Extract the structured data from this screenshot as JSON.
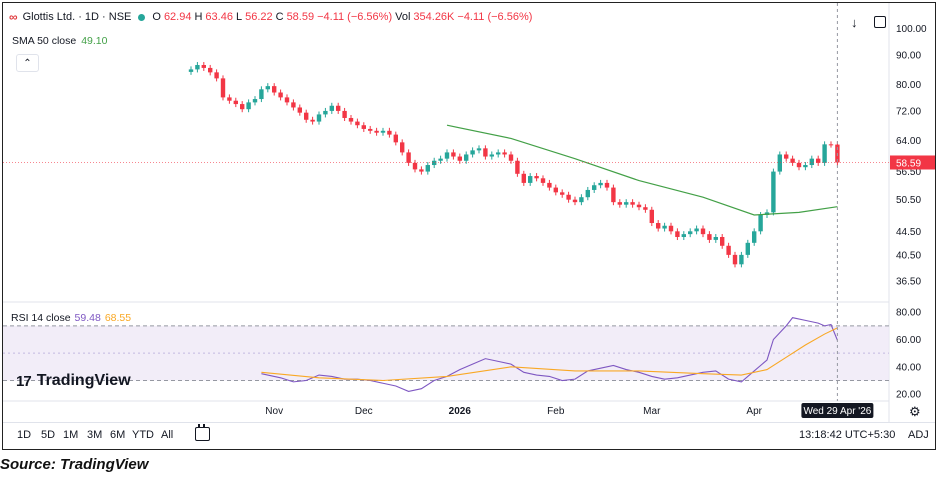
{
  "header": {
    "symbol": "Glottis Ltd. · 1D · NSE",
    "open_label": "O",
    "open": "62.94",
    "high_label": "H",
    "high": "63.46",
    "low_label": "L",
    "low": "56.22",
    "close_label": "C",
    "close": "58.59",
    "change": "−4.11 (−6.56%)",
    "vol_label": "Vol",
    "volume": "354.26K",
    "vol_change": "−4.11 (−6.56%)"
  },
  "sma_legend": {
    "label": "SMA 50 close",
    "value": "49.10"
  },
  "rsi_legend": {
    "label": "RSI 14 close",
    "value1": "59.48",
    "value2": "68.55"
  },
  "brand": "TradingView",
  "timeframes": [
    "1D",
    "5D",
    "1M",
    "3M",
    "6M",
    "YTD",
    "All"
  ],
  "clock": "13:18:42 UTC+5:30",
  "adj": "ADJ",
  "crosshair_date": "Wed 29 Apr '26",
  "last_price_label": "58.59",
  "caption": "Source: TradingView",
  "colors": {
    "up": "#26a69a",
    "down": "#f23645",
    "sma": "#43a047",
    "rsi": "#7e57c2",
    "rsi_ma": "#f9a825"
  },
  "chart_data": [
    {
      "type": "candlestick",
      "title": "Glottis Ltd. · 1D · NSE",
      "x_ticks": [
        "Nov",
        "Dec",
        "2026",
        "Feb",
        "Mar",
        "Apr"
      ],
      "y_ticks": [
        36.5,
        40.5,
        44.5,
        50.5,
        56.5,
        64.0,
        72.0,
        80.0,
        90.0,
        100.0
      ],
      "y_scale": "log",
      "ylim": [
        34.5,
        104.8
      ],
      "last_price": 58.59,
      "grid": false,
      "series": [
        {
          "name": "Price",
          "points": [
            [
              0,
              85.0
            ],
            [
              1,
              86.5
            ],
            [
              2,
              85.5
            ],
            [
              3,
              84.0
            ],
            [
              4,
              82.0
            ],
            [
              5,
              76.0
            ],
            [
              6,
              75.0
            ],
            [
              7,
              74.0
            ],
            [
              8,
              72.5
            ],
            [
              9,
              74.5
            ],
            [
              10,
              75.5
            ],
            [
              11,
              78.5
            ],
            [
              12,
              79.5
            ],
            [
              13,
              77.5
            ],
            [
              14,
              76.0
            ],
            [
              15,
              74.5
            ],
            [
              16,
              73.0
            ],
            [
              17,
              71.5
            ],
            [
              18,
              69.5
            ],
            [
              19,
              69.0
            ],
            [
              20,
              71.0
            ],
            [
              21,
              72.0
            ],
            [
              22,
              73.5
            ],
            [
              23,
              72.0
            ],
            [
              24,
              70.0
            ],
            [
              25,
              69.0
            ],
            [
              26,
              68.0
            ],
            [
              27,
              67.0
            ],
            [
              28,
              66.5
            ],
            [
              29,
              66.0
            ],
            [
              30,
              66.5
            ],
            [
              31,
              65.5
            ],
            [
              32,
              63.5
            ],
            [
              33,
              61.0
            ],
            [
              34,
              58.5
            ],
            [
              35,
              57.0
            ],
            [
              36,
              56.5
            ],
            [
              37,
              58.0
            ],
            [
              38,
              59.0
            ],
            [
              39,
              59.5
            ],
            [
              40,
              61.0
            ],
            [
              41,
              60.0
            ],
            [
              42,
              59.0
            ],
            [
              43,
              60.5
            ],
            [
              44,
              61.5
            ],
            [
              45,
              62.0
            ],
            [
              46,
              60.0
            ],
            [
              47,
              60.5
            ],
            [
              48,
              61.0
            ],
            [
              49,
              60.5
            ],
            [
              50,
              59.0
            ],
            [
              51,
              56.0
            ],
            [
              52,
              54.0
            ],
            [
              53,
              55.5
            ],
            [
              54,
              55.0
            ],
            [
              55,
              54.0
            ],
            [
              56,
              53.0
            ],
            [
              57,
              52.0
            ],
            [
              58,
              51.5
            ],
            [
              59,
              50.5
            ],
            [
              60,
              50.0
            ],
            [
              61,
              51.0
            ],
            [
              62,
              52.5
            ],
            [
              63,
              53.5
            ],
            [
              64,
              54.0
            ],
            [
              65,
              53.0
            ],
            [
              66,
              50.0
            ],
            [
              67,
              49.5
            ],
            [
              68,
              50.0
            ],
            [
              69,
              49.5
            ],
            [
              70,
              49.0
            ],
            [
              71,
              48.5
            ],
            [
              72,
              46.0
            ],
            [
              73,
              45.0
            ],
            [
              74,
              45.5
            ],
            [
              75,
              44.5
            ],
            [
              76,
              43.5
            ],
            [
              77,
              44.0
            ],
            [
              78,
              44.5
            ],
            [
              79,
              45.0
            ],
            [
              80,
              44.0
            ],
            [
              81,
              43.0
            ],
            [
              82,
              43.5
            ],
            [
              83,
              42.0
            ],
            [
              84,
              40.5
            ],
            [
              85,
              39.0
            ],
            [
              86,
              40.5
            ],
            [
              87,
              42.5
            ],
            [
              88,
              44.5
            ],
            [
              89,
              47.5
            ],
            [
              90,
              48.0
            ],
            [
              91,
              56.5
            ],
            [
              92,
              60.5
            ],
            [
              93,
              59.5
            ],
            [
              94,
              58.5
            ],
            [
              95,
              57.5
            ],
            [
              96,
              58.0
            ],
            [
              97,
              59.5
            ],
            [
              98,
              58.5
            ],
            [
              99,
              63.0
            ],
            [
              100,
              62.94
            ],
            [
              101,
              58.59
            ]
          ]
        },
        {
          "name": "SMA 50 close",
          "points": [
            [
              40,
              68.0
            ],
            [
              50,
              64.5
            ],
            [
              60,
              59.5
            ],
            [
              70,
              54.5
            ],
            [
              80,
              51.0
            ],
            [
              88,
              47.5
            ],
            [
              95,
              48.0
            ],
            [
              101,
              49.1
            ]
          ]
        }
      ]
    },
    {
      "type": "line",
      "title": "RSI 14 close",
      "x_ticks": [
        "Nov",
        "Dec",
        "2026",
        "Feb",
        "Mar",
        "Apr"
      ],
      "y_ticks": [
        20.0,
        40.0,
        60.0,
        80.0
      ],
      "ylim": [
        15,
        86
      ],
      "bands": [
        30,
        70
      ],
      "series": [
        {
          "name": "RSI 14 close",
          "points": [
            [
              11,
              35
            ],
            [
              14,
              32
            ],
            [
              16,
              29
            ],
            [
              18,
              30
            ],
            [
              20,
              34
            ],
            [
              22,
              33
            ],
            [
              24,
              31
            ],
            [
              26,
              31
            ],
            [
              28,
              30
            ],
            [
              30,
              28
            ],
            [
              32,
              26
            ],
            [
              34,
              22
            ],
            [
              36,
              24
            ],
            [
              38,
              30
            ],
            [
              40,
              33
            ],
            [
              42,
              38
            ],
            [
              44,
              42
            ],
            [
              46,
              46
            ],
            [
              48,
              44
            ],
            [
              50,
              42
            ],
            [
              52,
              36
            ],
            [
              54,
              34
            ],
            [
              56,
              33
            ],
            [
              58,
              30
            ],
            [
              60,
              31
            ],
            [
              62,
              37
            ],
            [
              64,
              39
            ],
            [
              66,
              41
            ],
            [
              68,
              38
            ],
            [
              70,
              36
            ],
            [
              72,
              33
            ],
            [
              74,
              31
            ],
            [
              76,
              32
            ],
            [
              78,
              34
            ],
            [
              80,
              36
            ],
            [
              82,
              37
            ],
            [
              84,
              31
            ],
            [
              86,
              29
            ],
            [
              88,
              37
            ],
            [
              90,
              45
            ],
            [
              91,
              60
            ],
            [
              93,
              70
            ],
            [
              94,
              76
            ],
            [
              96,
              74
            ],
            [
              98,
              72
            ],
            [
              99,
              70
            ],
            [
              100,
              71
            ],
            [
              101,
              59.48
            ]
          ]
        },
        {
          "name": "RSI MA",
          "points": [
            [
              11,
              36
            ],
            [
              20,
              32
            ],
            [
              30,
              30
            ],
            [
              40,
              33
            ],
            [
              50,
              40
            ],
            [
              60,
              37
            ],
            [
              70,
              37
            ],
            [
              80,
              35
            ],
            [
              86,
              34
            ],
            [
              90,
              38
            ],
            [
              93,
              47
            ],
            [
              96,
              56
            ],
            [
              99,
              64
            ],
            [
              101,
              68.55
            ]
          ]
        }
      ]
    }
  ]
}
